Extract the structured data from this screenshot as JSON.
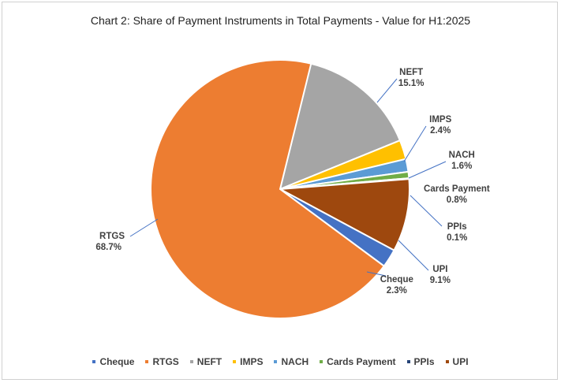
{
  "chart_data": {
    "type": "pie",
    "title": "Chart 2: Share of Payment Instruments in Total Payments - Value for H1:2025",
    "legend_position": "bottom",
    "slices": [
      {
        "name": "Cheque",
        "value": 2.3,
        "label": "2.3%",
        "color": "#4472C4"
      },
      {
        "name": "RTGS",
        "value": 68.7,
        "label": "68.7%",
        "color": "#ED7D31"
      },
      {
        "name": "NEFT",
        "value": 15.1,
        "label": "15.1%",
        "color": "#A5A5A5"
      },
      {
        "name": "IMPS",
        "value": 2.4,
        "label": "2.4%",
        "color": "#FFC000"
      },
      {
        "name": "NACH",
        "value": 1.6,
        "label": "1.6%",
        "color": "#5B9BD5"
      },
      {
        "name": "Cards Payment",
        "value": 0.8,
        "label": "0.8%",
        "color": "#70AD47"
      },
      {
        "name": "PPIs",
        "value": 0.1,
        "label": "0.1%",
        "color": "#264478"
      },
      {
        "name": "UPI",
        "value": 9.1,
        "label": "9.1%",
        "color": "#9E480E"
      }
    ]
  }
}
